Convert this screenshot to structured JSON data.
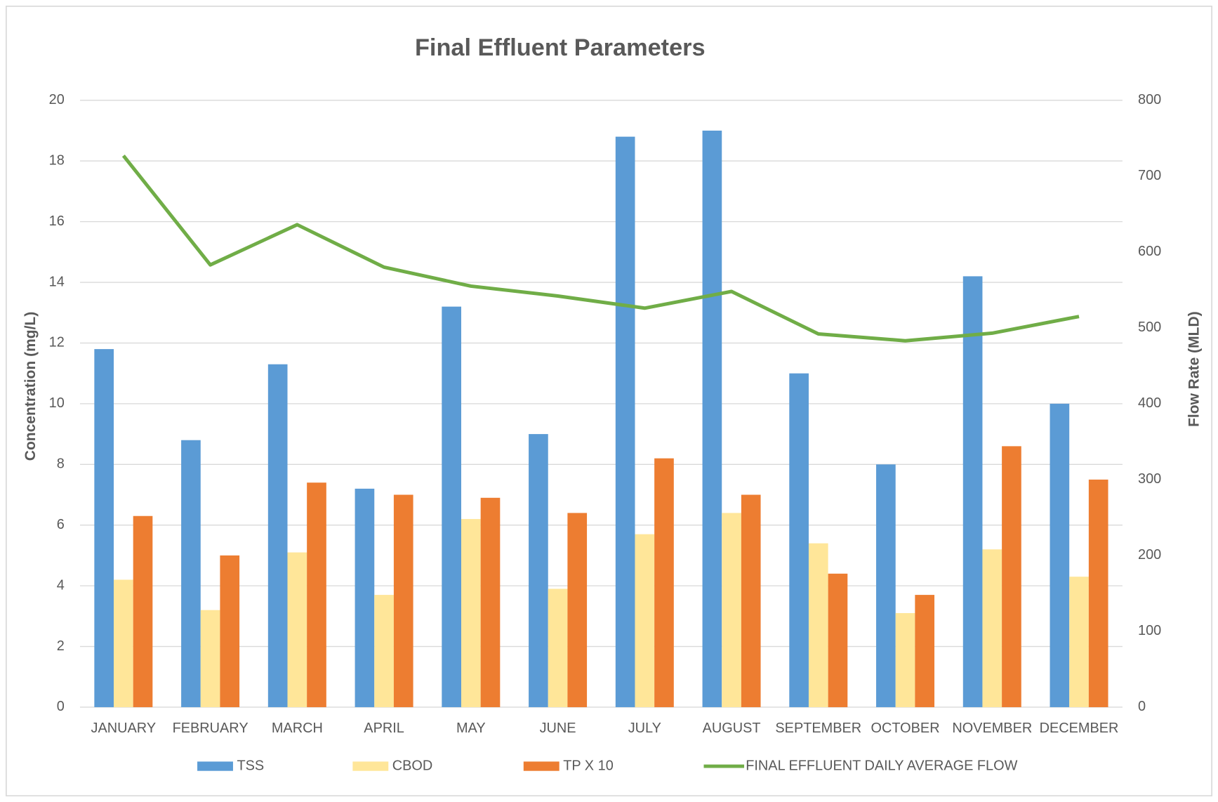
{
  "chart_data": {
    "type": "bar",
    "title": "Final Effluent Parameters",
    "y_label": "Concentration (mg/L)",
    "y2_label": "Flow Rate (MLD)",
    "categories": [
      "JANUARY",
      "FEBRUARY",
      "MARCH",
      "APRIL",
      "MAY",
      "JUNE",
      "JULY",
      "AUGUST",
      "SEPTEMBER",
      "OCTOBER",
      "NOVEMBER",
      "DECEMBER"
    ],
    "series": [
      {
        "name": "TSS",
        "type": "bar",
        "color": "#5b9bd5",
        "values": [
          11.8,
          8.8,
          11.3,
          7.2,
          13.2,
          9.0,
          18.8,
          19.0,
          11.0,
          8.0,
          14.2,
          10.0
        ]
      },
      {
        "name": "CBOD",
        "type": "bar",
        "color": "#ffe699",
        "values": [
          4.2,
          3.2,
          5.1,
          3.7,
          6.2,
          3.9,
          5.7,
          6.4,
          5.4,
          3.1,
          5.2,
          4.3
        ]
      },
      {
        "name": "TP X 10",
        "type": "bar",
        "color": "#ed7d31",
        "values": [
          6.3,
          5.0,
          7.4,
          7.0,
          6.9,
          6.4,
          8.2,
          7.0,
          4.4,
          3.7,
          8.6,
          7.5
        ]
      },
      {
        "name": "FINAL EFFLUENT DAILY AVERAGE FLOW",
        "type": "line",
        "axis": "y2",
        "color": "#70ad47",
        "values": [
          727,
          583,
          636,
          580,
          555,
          542,
          526,
          548,
          492,
          483,
          493,
          515
        ]
      }
    ],
    "ylim": [
      0,
      20
    ],
    "yticks": [
      0,
      2,
      4,
      6,
      8,
      10,
      12,
      14,
      16,
      18,
      20
    ],
    "y2lim": [
      0,
      800
    ],
    "y2ticks": [
      0,
      100,
      200,
      300,
      400,
      500,
      600,
      700,
      800
    ],
    "grid": true,
    "legend": "bottom"
  }
}
